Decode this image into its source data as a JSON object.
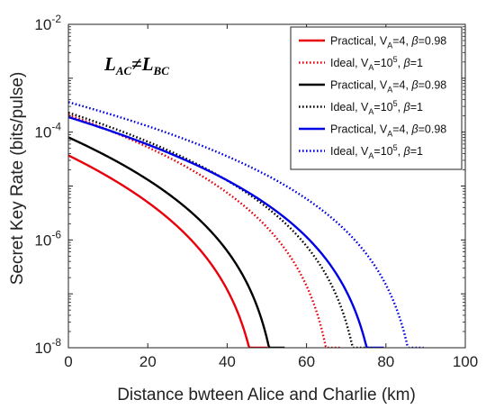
{
  "chart_data": {
    "type": "line",
    "xlabel": "Distance bwteen Alice and Charlie (km)",
    "ylabel": "Secret Key Rate (bits/pulse)",
    "xlim": [
      0,
      100
    ],
    "ylim": [
      1e-08,
      0.01
    ],
    "y_scale": "log",
    "x_ticks": [
      "0",
      "20",
      "40",
      "60",
      "80",
      "100"
    ],
    "y_ticks": [
      {
        "value": 1e-08,
        "base": "10",
        "exp": "-8"
      },
      {
        "value": 1e-06,
        "base": "10",
        "exp": "-6"
      },
      {
        "value": 0.0001,
        "base": "10",
        "exp": "-4"
      },
      {
        "value": 0.01,
        "base": "10",
        "exp": "-2"
      }
    ],
    "grid": false,
    "legend_position": "top-right",
    "annotation": {
      "lhs": "L",
      "lhs_sub": "AC",
      "op": "≠",
      "rhs": "L",
      "rhs_sub": "BC"
    },
    "series": [
      {
        "name": "Practical, VA=4, β=0.98",
        "legend": {
          "pre": "Practical, V",
          "sub": "A",
          "mid": "=4, ",
          "greek": "β",
          "post": "=0.98"
        },
        "color": "#e8000b",
        "style": "solid",
        "x0": 0,
        "y0": 3.7e-05,
        "xmax": 50.2
      },
      {
        "name": "Ideal, VA=10^5, β=1",
        "legend": {
          "pre": "Ideal, V",
          "sub": "A",
          "mid": "=10",
          "sup": "5",
          "mid2": ", ",
          "greek": "β",
          "post": "=1"
        },
        "color": "#e8000b",
        "style": "dotted",
        "x0": 0,
        "y0": 0.00021,
        "xmax": 68.5
      },
      {
        "name": "Practical, VA=4, β=0.98",
        "legend": {
          "pre": "Practical, V",
          "sub": "A",
          "mid": "=4, ",
          "greek": "β",
          "post": "=0.98"
        },
        "color": "#000000",
        "style": "solid",
        "x0": 0,
        "y0": 8e-05,
        "xmax": 54.5
      },
      {
        "name": "Ideal, VA=10^5, β=1",
        "legend": {
          "pre": "Ideal, V",
          "sub": "A",
          "mid": "=10",
          "sup": "5",
          "mid2": ", ",
          "greek": "β",
          "post": "=1"
        },
        "color": "#000000",
        "style": "dotted",
        "x0": 0,
        "y0": 0.00023,
        "xmax": 75.5
      },
      {
        "name": "Practical, VA=4, β=0.98",
        "legend": {
          "pre": "Practical, V",
          "sub": "A",
          "mid": "=4, ",
          "greek": "β",
          "post": "=0.98"
        },
        "color": "#0000e6",
        "style": "solid",
        "x0": 0,
        "y0": 0.00019,
        "xmax": 79.5
      },
      {
        "name": "Ideal, VA=10^5, β=1",
        "legend": {
          "pre": "Ideal, V",
          "sub": "A",
          "mid": "=10",
          "sup": "5",
          "mid2": ", ",
          "greek": "β",
          "post": "=1"
        },
        "color": "#0000e6",
        "style": "dotted",
        "x0": 0,
        "y0": 0.00036,
        "xmax": 89.5
      }
    ]
  }
}
